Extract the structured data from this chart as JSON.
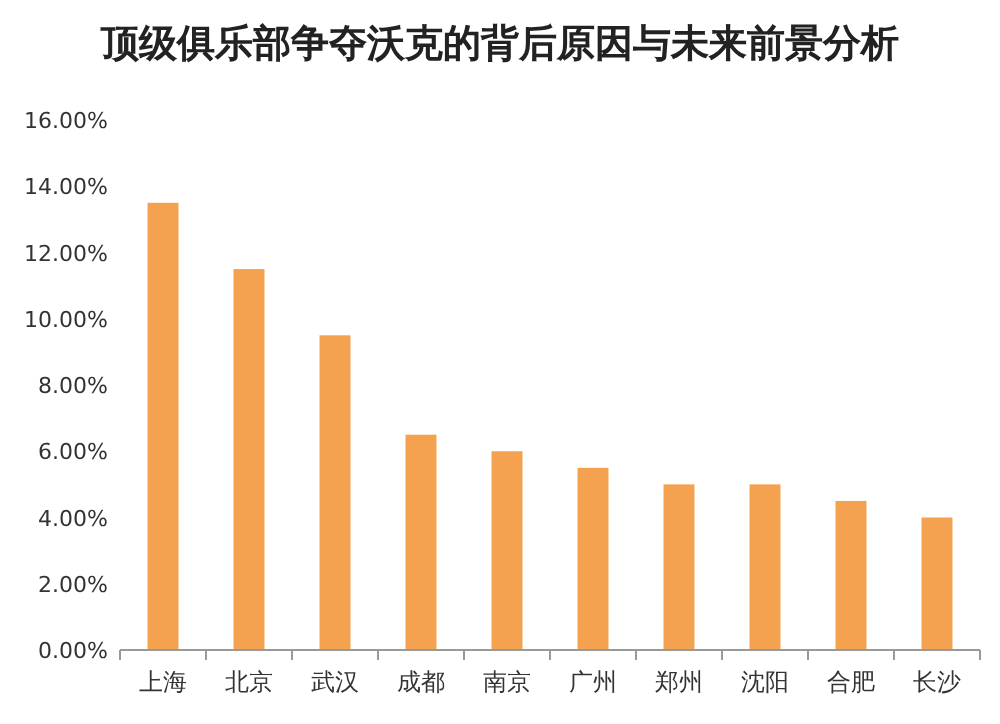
{
  "chart_data": {
    "type": "bar",
    "title": "顶级俱乐部争夺沃克的背后原因与未来前景分析",
    "categories": [
      "上海",
      "北京",
      "武汉",
      "成都",
      "南京",
      "广州",
      "郑州",
      "沈阳",
      "合肥",
      "长沙"
    ],
    "values": [
      13.5,
      11.5,
      9.5,
      6.5,
      6.0,
      5.5,
      5.0,
      5.0,
      4.5,
      4.0
    ],
    "color": "#f4a24f",
    "ylim": [
      0,
      16
    ],
    "yticks": [
      {
        "value": 0,
        "label": "0.00%"
      },
      {
        "value": 2,
        "label": "2.00%"
      },
      {
        "value": 4,
        "label": "4.00%"
      },
      {
        "value": 6,
        "label": "6.00%"
      },
      {
        "value": 8,
        "label": "8.00%"
      },
      {
        "value": 10,
        "label": "10.00%"
      },
      {
        "value": 12,
        "label": "12.00%"
      },
      {
        "value": 14,
        "label": "14.00%"
      },
      {
        "value": 16,
        "label": "16.00%"
      }
    ],
    "grid": false
  }
}
